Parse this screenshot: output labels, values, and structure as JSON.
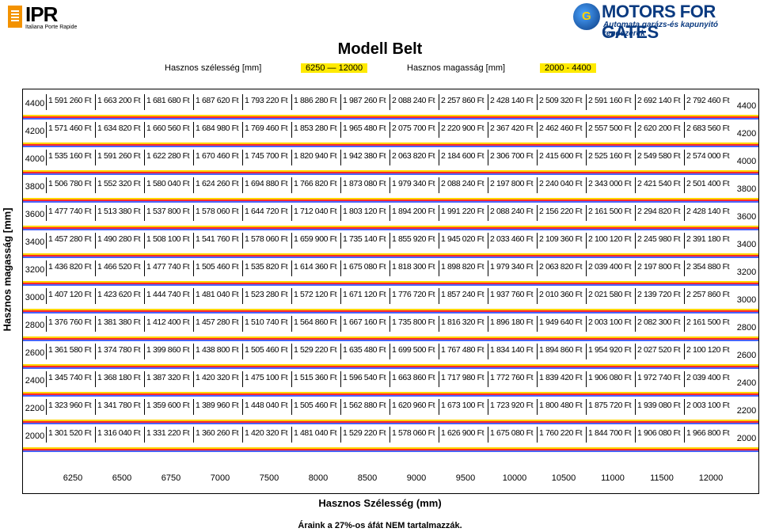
{
  "header": {
    "left_logo_text": "IPR",
    "left_logo_sub": "Italiana Porte Rapide",
    "right_logo_icon": "gear-g-icon",
    "right_logo_text": "MOTORS FOR GATES",
    "right_logo_sub": "Automata garázs-és kapunyitó rendszerek"
  },
  "title": "Modell Belt",
  "meta": {
    "width_label": "Hasznos szélesség [mm]",
    "width_range": "6250  —  12000",
    "height_label": "Hasznos magasság [mm]",
    "height_range": "2000  -  4400"
  },
  "y_axis_label": "Hasznos magasság [mm]",
  "x_axis_label": "Hasznos Szélesség (mm)",
  "footnote": "Áraink a 27%-os áfát NEM tartalmazzák.",
  "widths": [
    "6250",
    "6500",
    "6750",
    "7000",
    "7500",
    "8000",
    "8500",
    "9000",
    "9500",
    "10000",
    "10500",
    "11000",
    "11500",
    "12000"
  ],
  "rows": [
    {
      "height": "4400",
      "prices": [
        "1 591 260 Ft",
        "1 663 200 Ft",
        "1 681 680 Ft",
        "1 687 620 Ft",
        "1 793 220 Ft",
        "1 886 280 Ft",
        "1 987 260 Ft",
        "2 088 240 Ft",
        "2 257 860 Ft",
        "2 428 140 Ft",
        "2 509 320 Ft",
        "2 591 160 Ft",
        "2 692 140 Ft",
        "2 792 460 Ft"
      ]
    },
    {
      "height": "4200",
      "prices": [
        "1 571 460 Ft",
        "1 634 820 Ft",
        "1 660 560 Ft",
        "1 684 980 Ft",
        "1 769 460 Ft",
        "1 853 280 Ft",
        "1 965 480 Ft",
        "2 075 700 Ft",
        "2 220 900 Ft",
        "2 367 420 Ft",
        "2 462 460 Ft",
        "2 557 500 Ft",
        "2 620 200 Ft",
        "2 683 560 Ft"
      ]
    },
    {
      "height": "4000",
      "prices": [
        "1 535 160 Ft",
        "1 591 260 Ft",
        "1 622 280 Ft",
        "1 670 460 Ft",
        "1 745 700 Ft",
        "1 820 940 Ft",
        "1 942 380 Ft",
        "2 063 820 Ft",
        "2 184 600 Ft",
        "2 306 700 Ft",
        "2 415 600 Ft",
        "2 525 160 Ft",
        "2 549 580 Ft",
        "2 574 000 Ft"
      ]
    },
    {
      "height": "3800",
      "prices": [
        "1 506 780 Ft",
        "1 552 320 Ft",
        "1 580 040 Ft",
        "1 624 260 Ft",
        "1 694 880 Ft",
        "1 766 820 Ft",
        "1 873 080 Ft",
        "1 979 340 Ft",
        "2 088 240 Ft",
        "2 197 800 Ft",
        "2 240 040 Ft",
        "2 343 000 Ft",
        "2 421 540 Ft",
        "2 501 400 Ft"
      ]
    },
    {
      "height": "3600",
      "prices": [
        "1 477 740 Ft",
        "1 513 380 Ft",
        "1 537 800 Ft",
        "1 578 060 Ft",
        "1 644 720 Ft",
        "1 712 040 Ft",
        "1 803 120 Ft",
        "1 894 200 Ft",
        "1 991 220 Ft",
        "2 088 240 Ft",
        "2 156 220 Ft",
        "2 161 500 Ft",
        "2 294 820 Ft",
        "2 428 140 Ft"
      ]
    },
    {
      "height": "3400",
      "prices": [
        "1 457 280 Ft",
        "1 490 280 Ft",
        "1 508 100 Ft",
        "1 541 760 Ft",
        "1 578 060 Ft",
        "1 659 900 Ft",
        "1 735 140 Ft",
        "1 855 920 Ft",
        "1 945 020 Ft",
        "2 033 460 Ft",
        "2 109 360 Ft",
        "2 100 120 Ft",
        "2 245 980 Ft",
        "2 391 180 Ft"
      ]
    },
    {
      "height": "3200",
      "prices": [
        "1 436 820 Ft",
        "1 466 520 Ft",
        "1 477 740 Ft",
        "1 505 460 Ft",
        "1 535 820 Ft",
        "1 614 360 Ft",
        "1 675 080 Ft",
        "1 818 300 Ft",
        "1 898 820 Ft",
        "1 979 340 Ft",
        "2 063 820 Ft",
        "2 039 400 Ft",
        "2 197 800 Ft",
        "2 354 880 Ft"
      ]
    },
    {
      "height": "3000",
      "prices": [
        "1 407 120 Ft",
        "1 423 620 Ft",
        "1 444 740 Ft",
        "1 481 040 Ft",
        "1 523 280 Ft",
        "1 572 120 Ft",
        "1 671 120 Ft",
        "1 776 720 Ft",
        "1 857 240 Ft",
        "1 937 760 Ft",
        "2 010 360 Ft",
        "2 021 580 Ft",
        "2 139 720 Ft",
        "2 257 860 Ft"
      ]
    },
    {
      "height": "2800",
      "prices": [
        "1 376 760 Ft",
        "1 381 380 Ft",
        "1 412 400 Ft",
        "1 457 280 Ft",
        "1 510 740 Ft",
        "1 564 860 Ft",
        "1 667 160 Ft",
        "1 735 800 Ft",
        "1 816 320 Ft",
        "1 896 180 Ft",
        "1 949 640 Ft",
        "2 003 100 Ft",
        "2 082 300 Ft",
        "2 161 500 Ft"
      ]
    },
    {
      "height": "2600",
      "prices": [
        "1 361 580 Ft",
        "1 374 780 Ft",
        "1 399 860 Ft",
        "1 438 800 Ft",
        "1 505 460 Ft",
        "1 529 220 Ft",
        "1 635 480 Ft",
        "1 699 500 Ft",
        "1 767 480 Ft",
        "1 834 140 Ft",
        "1 894 860 Ft",
        "1 954 920 Ft",
        "2 027 520 Ft",
        "2 100 120 Ft"
      ]
    },
    {
      "height": "2400",
      "prices": [
        "1 345 740 Ft",
        "1 368 180 Ft",
        "1 387 320 Ft",
        "1 420 320 Ft",
        "1 475 100 Ft",
        "1 515 360 Ft",
        "1 596 540 Ft",
        "1 663 860 Ft",
        "1 717 980 Ft",
        "1 772 760 Ft",
        "1 839 420 Ft",
        "1 906 080 Ft",
        "1 972 740 Ft",
        "2 039 400 Ft"
      ]
    },
    {
      "height": "2200",
      "prices": [
        "1 323 960 Ft",
        "1 341 780 Ft",
        "1 359 600 Ft",
        "1 389 960 Ft",
        "1 448 040 Ft",
        "1 505 460 Ft",
        "1 562 880 Ft",
        "1 620 960 Ft",
        "1 673 100 Ft",
        "1 723 920 Ft",
        "1 800 480 Ft",
        "1 875 720 Ft",
        "1 939 080 Ft",
        "2 003 100 Ft"
      ]
    },
    {
      "height": "2000",
      "prices": [
        "1 301 520 Ft",
        "1 316 040 Ft",
        "1 331 220 Ft",
        "1 360 260 Ft",
        "1 420 320 Ft",
        "1 481 040 Ft",
        "1 529 220 Ft",
        "1 578 060 Ft",
        "1 626 900 Ft",
        "1 675 080 Ft",
        "1 760 220 Ft",
        "1 844 700 Ft",
        "1 906 080 Ft",
        "1 966 800 Ft"
      ]
    }
  ]
}
